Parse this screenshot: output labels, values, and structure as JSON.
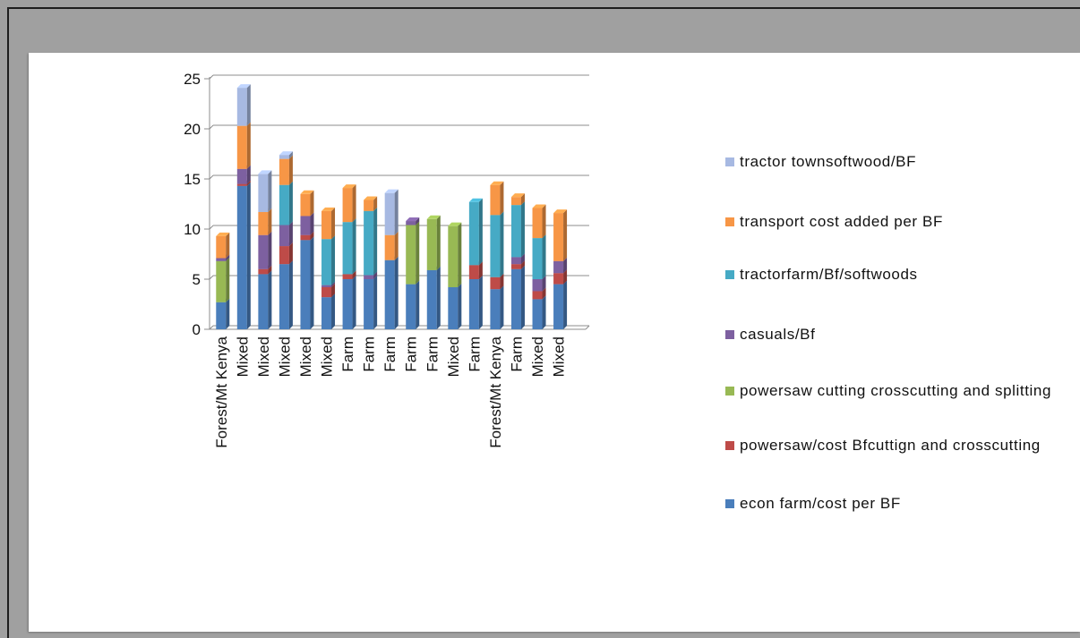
{
  "chart_data": {
    "type": "bar",
    "stacked": true,
    "style": "3d-column",
    "title": "",
    "xlabel": "",
    "ylabel": "",
    "ylim": [
      0,
      25
    ],
    "yticks": [
      0,
      5,
      10,
      15,
      20,
      25
    ],
    "grid": true,
    "legend_position": "right",
    "categories": [
      "Forest/Mt Kenya",
      "Mixed",
      "Mixed",
      "Mixed",
      "Mixed",
      "Mixed",
      "Farm",
      "Farm",
      "Farm",
      "Farm",
      "Farm",
      "Mixed",
      "Farm",
      "Forest/Mt Kenya",
      "Farm",
      "Mixed",
      "Mixed"
    ],
    "series": [
      {
        "name": "econ farm/cost per BF",
        "color": "#4a7ebb",
        "values": [
          2.7,
          14.3,
          5.5,
          6.5,
          8.9,
          3.2,
          5.0,
          5.0,
          6.9,
          4.5,
          5.9,
          4.2,
          5.0,
          4.0,
          6.0,
          3.0,
          4.5
        ]
      },
      {
        "name": "powersaw/cost Bfcuttign and crosscutting",
        "color": "#be4b48",
        "values": [
          0,
          0.2,
          0.5,
          1.8,
          0.5,
          1.0,
          0.5,
          0,
          0,
          0,
          0,
          0,
          1.4,
          1.2,
          0.5,
          0.8,
          1.1
        ]
      },
      {
        "name": "powersaw cutting crosscutting and splitting",
        "color": "#98b954",
        "values": [
          4.1,
          0,
          0,
          0,
          0,
          0,
          0,
          0,
          0,
          5.9,
          5.1,
          6.1,
          0,
          0,
          0,
          0,
          0
        ]
      },
      {
        "name": "casuals/Bf",
        "color": "#7d60a0",
        "values": [
          0.3,
          1.5,
          3.4,
          2.1,
          1.9,
          0.2,
          0,
          0.4,
          0,
          0.4,
          0,
          0,
          0,
          0,
          0.7,
          1.2,
          1.2
        ]
      },
      {
        "name": "tractorfarm/Bf/softwoods",
        "color": "#46aac5",
        "values": [
          0,
          0,
          0,
          4.0,
          0,
          4.6,
          5.2,
          6.4,
          0,
          0,
          0,
          0,
          6.3,
          6.2,
          5.2,
          4.1,
          0
        ]
      },
      {
        "name": "transport cost added per BF",
        "color": "#f79646",
        "values": [
          2.2,
          4.3,
          2.3,
          2.6,
          2.2,
          2.8,
          3.4,
          1.1,
          2.5,
          0,
          0,
          0,
          0,
          3.0,
          0.8,
          3.0,
          4.8
        ]
      },
      {
        "name": "tractor townsoftwood/BF",
        "color": "#a7b9e2",
        "values": [
          0,
          3.8,
          3.8,
          0.4,
          0,
          0,
          0,
          0,
          4.2,
          0,
          0,
          0,
          0,
          0,
          0,
          0,
          0
        ]
      }
    ]
  },
  "legend": {
    "items": [
      {
        "label": "tractor townsoftwood/BF",
        "color": "#a7b9e2"
      },
      {
        "label": "transport cost added per BF",
        "color": "#f79646"
      },
      {
        "label": "tractorfarm/Bf/softwoods",
        "color": "#46aac5"
      },
      {
        "label": "casuals/Bf",
        "color": "#7d60a0"
      },
      {
        "label": "powersaw cutting crosscutting and splitting",
        "color": "#98b954"
      },
      {
        "label": "powersaw/cost Bfcuttign and crosscutting",
        "color": "#be4b48"
      },
      {
        "label": "econ farm/cost per BF",
        "color": "#4a7ebb"
      }
    ]
  }
}
